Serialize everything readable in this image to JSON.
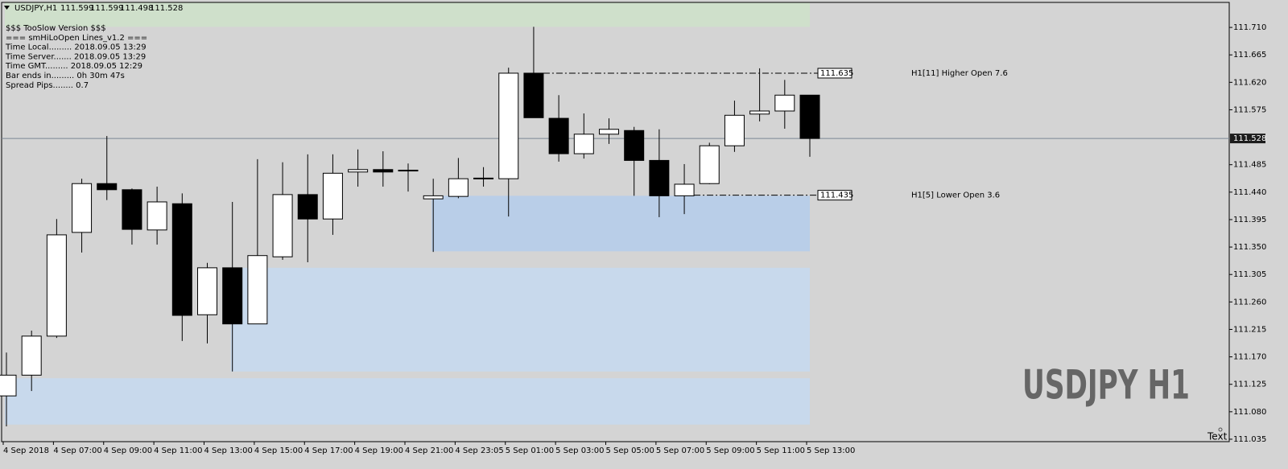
{
  "chart_data": {
    "type": "candlestick",
    "symbol": "USDJPY,H1",
    "watermark": "USDJPY H1",
    "corner_text": "Text",
    "info": [
      "$$$ TooSlow Version $$$",
      "=== smHiLoOpen Lines_v1.2 ===",
      "Time Local......... 2018.09.05 13:29",
      "Time Server....... 2018.09.05 13:29",
      "Time GMT......... 2018.09.05 12:29",
      "Bar ends in......... 0h 30m 47s",
      "Spread Pips........ 0.7"
    ],
    "categories": [
      "4 Sep 2018",
      null,
      "4 Sep 07:00",
      null,
      "4 Sep 09:00",
      null,
      "4 Sep 11:00",
      null,
      "4 Sep 13:00",
      null,
      "4 Sep 15:00",
      null,
      "4 Sep 17:00",
      null,
      "4 Sep 19:00",
      null,
      "4 Sep 21:00",
      null,
      "4 Sep 23:05",
      null,
      "5 Sep 01:00",
      null,
      "5 Sep 03:00",
      null,
      "5 Sep 05:00",
      null,
      "5 Sep 07:00",
      null,
      "5 Sep 09:00",
      null,
      "5 Sep 11:00",
      null,
      "5 Sep 13:00"
    ],
    "open": [
      111.106,
      111.14,
      111.204,
      111.374,
      111.454,
      111.444,
      111.378,
      111.421,
      111.239,
      111.316,
      111.224,
      111.334,
      111.436,
      111.396,
      111.473,
      111.477,
      111.476,
      111.429,
      111.433,
      111.462,
      111.462,
      111.635,
      111.561,
      111.503,
      111.535,
      111.541,
      111.492,
      111.434,
      111.454,
      111.516,
      111.568,
      111.573,
      111.599
    ],
    "high": [
      111.177,
      111.213,
      111.396,
      111.462,
      111.532,
      111.446,
      111.449,
      111.438,
      111.324,
      111.424,
      111.494,
      111.489,
      111.502,
      111.502,
      111.51,
      111.507,
      111.487,
      111.462,
      111.496,
      111.481,
      111.644,
      111.711,
      111.599,
      111.569,
      111.561,
      111.547,
      111.543,
      111.486,
      111.521,
      111.59,
      111.643,
      111.624,
      111.599
    ],
    "low": [
      111.056,
      111.114,
      111.201,
      111.341,
      111.427,
      111.354,
      111.354,
      111.196,
      111.192,
      111.146,
      111.224,
      111.329,
      111.325,
      111.37,
      111.449,
      111.449,
      111.441,
      111.342,
      111.43,
      111.449,
      111.4,
      111.562,
      111.49,
      111.495,
      111.519,
      111.434,
      111.399,
      111.404,
      111.453,
      111.506,
      111.556,
      111.544,
      111.498
    ],
    "close": [
      111.14,
      111.204,
      111.37,
      111.454,
      111.444,
      111.379,
      111.424,
      111.238,
      111.316,
      111.224,
      111.336,
      111.436,
      111.396,
      111.471,
      111.477,
      111.473,
      111.476,
      111.434,
      111.462,
      111.463,
      111.635,
      111.562,
      111.503,
      111.535,
      111.543,
      111.492,
      111.434,
      111.453,
      111.516,
      111.566,
      111.573,
      111.599,
      111.528
    ],
    "up_color": "#ffffff",
    "down_color": "#000000",
    "ylim": [
      111.031,
      111.751
    ],
    "yticks": [
      111.035,
      {
        "value": 111.08,
        "label": "111.080"
      },
      111.125,
      {
        "value": 111.17,
        "label": "111.170"
      },
      111.215,
      {
        "value": 111.26,
        "label": "111.260"
      },
      111.305,
      {
        "value": 111.35,
        "label": "111.350"
      },
      111.395,
      {
        "value": 111.44,
        "label": "111.440"
      },
      111.485,
      111.575,
      {
        "value": 111.62,
        "label": "111.620"
      },
      111.665,
      {
        "value": 111.71,
        "label": "111.710"
      }
    ],
    "zones": [
      {
        "from": 111.711,
        "to": 111.751,
        "start": 0,
        "color": "#cfe0cb"
      },
      {
        "from": 111.343,
        "to": 111.434,
        "start": 17,
        "color": "#b9cee8"
      },
      {
        "from": 111.146,
        "to": 111.316,
        "start": 9,
        "color": "#c8d9ec"
      },
      {
        "from": 111.059,
        "to": 111.135,
        "start": 0,
        "color": "#c8d9ec"
      }
    ],
    "levels": [
      {
        "value": 111.635,
        "start": 21,
        "text": "H1[11] Higher Open 7.6"
      },
      {
        "value": 111.435,
        "start": 27,
        "text": "H1[5] Lower Open 3.6"
      }
    ]
  }
}
